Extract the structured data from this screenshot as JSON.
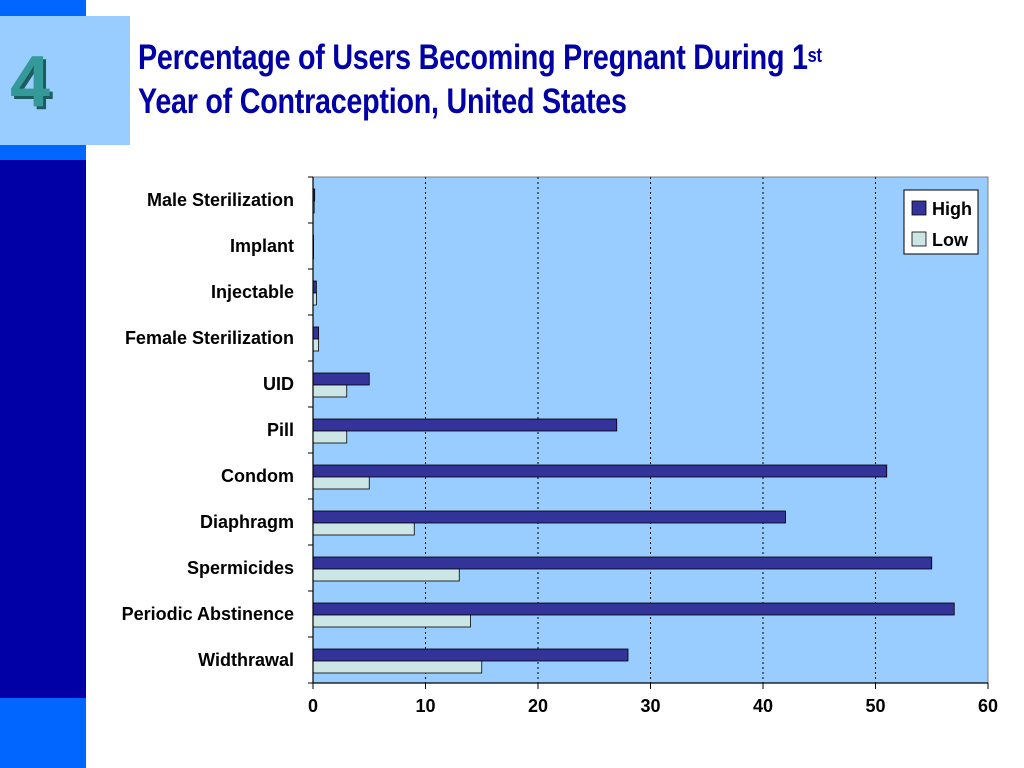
{
  "slide": {
    "number": "4",
    "title_line1": "Percentage of Users Becoming Pregnant During 1",
    "title_sup": "st",
    "title_line2": "Year of Contraception, United States"
  },
  "colors": {
    "high": "#333399",
    "low": "#cce6e6",
    "plot_bg": "#99ccff",
    "title": "#0000a6",
    "accent_dark": "#0000a6",
    "accent_bright": "#0066ff",
    "number_box": "#99ccff",
    "number_text": "#339999"
  },
  "chart_data": {
    "type": "bar",
    "orientation": "horizontal",
    "categories": [
      "Male Sterilization",
      "Implant",
      "Injectable",
      "Female Sterilization",
      "UID",
      "Pill",
      "Condom",
      "Diaphragm",
      "Spermicides",
      "Periodic Abstinence",
      "Widthrawal"
    ],
    "series": [
      {
        "name": "High",
        "values": [
          0.15,
          0.05,
          0.3,
          0.5,
          5,
          27,
          51,
          42,
          55,
          57,
          28
        ]
      },
      {
        "name": "Low",
        "values": [
          0.1,
          0.05,
          0.3,
          0.5,
          3,
          3,
          5,
          9,
          13,
          14,
          15
        ]
      }
    ],
    "xlim": [
      0,
      60
    ],
    "xticks": [
      0,
      10,
      20,
      30,
      40,
      50,
      60
    ],
    "grid": "vertical dotted",
    "legend_position": "top-right"
  }
}
